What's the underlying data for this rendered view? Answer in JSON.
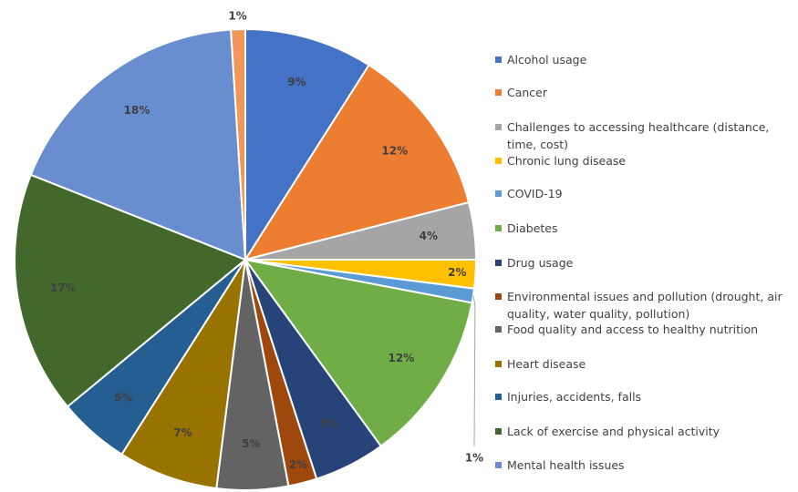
{
  "chart_data": {
    "type": "pie",
    "categories": [
      "Alcohol usage",
      "Cancer",
      "Challenges to accessing healthcare (distance, time, cost)",
      "Chronic lung disease",
      "COVID-19",
      "Diabetes",
      "Drug usage",
      "Environmental issues and pollution (drought, air quality, water quality, pollution)",
      "Food quality and access to healthy nutrition",
      "Heart disease",
      "Injuries, accidents, falls",
      "Lack of exercise and physical activity",
      "Mental health issues",
      null
    ],
    "values": [
      9,
      12,
      4,
      2,
      1,
      12,
      5,
      2,
      5,
      7,
      5,
      17,
      18,
      1
    ],
    "value_labels": [
      "9%",
      "12%",
      "4%",
      "2%",
      "1%",
      "12%",
      "5%",
      "2%",
      "5%",
      "7%",
      "5%",
      "17%",
      "18%",
      "1%"
    ],
    "colors": [
      "#4472c4",
      "#ed7d31",
      "#a5a5a5",
      "#ffc000",
      "#5b9bd5",
      "#70ad47",
      "#264478",
      "#9e480e",
      "#636363",
      "#997300",
      "#255e91",
      "#43682b",
      "#698ed0",
      "#f1975a"
    ],
    "legend": "right"
  }
}
